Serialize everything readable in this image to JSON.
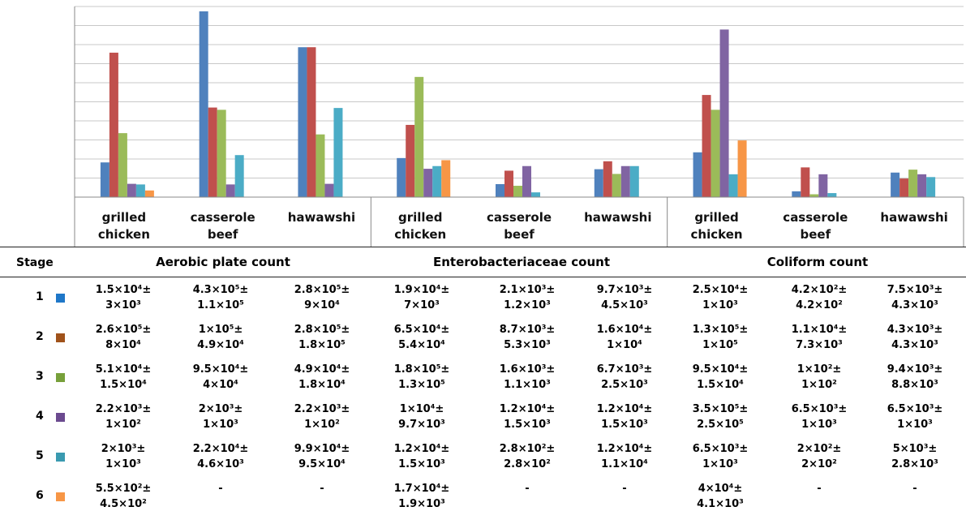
{
  "chart_data": {
    "type": "bar",
    "groups": [
      {
        "name": "Aerobic plate count",
        "categories": [
          "grilled\nchicken",
          "casserole\nbeef",
          "hawawshi"
        ]
      },
      {
        "name": "Enterobacteriaceae count",
        "categories": [
          "grilled\nchicken",
          "casserole\nbeef",
          "hawawshi"
        ]
      },
      {
        "name": "Coliform count",
        "categories": [
          "grilled\nchicken",
          "casserole\nbeef",
          "hawawshi"
        ]
      }
    ],
    "series": [
      {
        "color": "#4f81bd",
        "values": [
          15000.0,
          430000.0,
          280000.0,
          19000.0,
          2100.0,
          9700.0,
          25000.0,
          420.0,
          7500.0
        ]
      },
      {
        "color": "#c0504d",
        "values": [
          260000.0,
          100000.0,
          280000.0,
          65000.0,
          8700.0,
          16000.0,
          130000.0,
          11000.0,
          4300.0
        ]
      },
      {
        "color": "#9bbb59",
        "values": [
          51000.0,
          95000.0,
          49000.0,
          180000.0,
          1600.0,
          6700.0,
          95000.0,
          100.0,
          9400.0
        ]
      },
      {
        "color": "#8064a2",
        "values": [
          2200.0,
          2000.0,
          2200.0,
          10000.0,
          12000.0,
          12000.0,
          350000.0,
          6500.0,
          6500.0
        ]
      },
      {
        "color": "#4bacc6",
        "values": [
          2000.0,
          22000.0,
          99000.0,
          12000.0,
          280.0,
          12000.0,
          6500.0,
          200.0,
          5000.0
        ]
      },
      {
        "color": "#f79646",
        "values": [
          550.0,
          null,
          null,
          17000.0,
          null,
          null,
          40000.0,
          null,
          null
        ]
      }
    ],
    "grid": true,
    "y_tick_labels_visible": false
  },
  "table": {
    "stage_header": "Stage",
    "group_headers": [
      "Aerobic plate count",
      "Enterobacteriaceae count",
      "Coliform count"
    ],
    "rows": [
      {
        "stage": "1",
        "color": "#1f77c8",
        "cells": [
          [
            "1.5×10⁴±",
            "3×10³"
          ],
          [
            "4.3×10⁵±",
            "1.1×10⁵"
          ],
          [
            "2.8×10⁵±",
            "9×10⁴"
          ],
          [
            "1.9×10⁴±",
            "7×10³"
          ],
          [
            "2.1×10³±",
            "1.2×10³"
          ],
          [
            "9.7×10³±",
            "4.5×10³"
          ],
          [
            "2.5×10⁴±",
            "1×10³"
          ],
          [
            "4.2×10²±",
            "4.2×10²"
          ],
          [
            "7.5×10³±",
            "4.3×10³"
          ]
        ]
      },
      {
        "stage": "2",
        "color": "#a0521a",
        "cells": [
          [
            "2.6×10⁵±",
            "8×10⁴"
          ],
          [
            "1×10⁵±",
            "4.9×10⁴"
          ],
          [
            "2.8×10⁵±",
            "1.8×10⁵"
          ],
          [
            "6.5×10⁴±",
            "5.4×10⁴"
          ],
          [
            "8.7×10³±",
            "5.3×10³"
          ],
          [
            "1.6×10⁴±",
            "1×10⁴"
          ],
          [
            "1.3×10⁵±",
            "1×10⁵"
          ],
          [
            "1.1×10⁴±",
            "7.3×10³"
          ],
          [
            "4.3×10³±",
            "4.3×10³"
          ]
        ]
      },
      {
        "stage": "3",
        "color": "#77a03a",
        "cells": [
          [
            "5.1×10⁴±",
            "1.5×10⁴"
          ],
          [
            "9.5×10⁴±",
            "4×10⁴"
          ],
          [
            "4.9×10⁴±",
            "1.8×10⁴"
          ],
          [
            "1.8×10⁵±",
            "1.3×10⁵"
          ],
          [
            "1.6×10³±",
            "1.1×10³"
          ],
          [
            "6.7×10³±",
            "2.5×10³"
          ],
          [
            "9.5×10⁴±",
            "1.5×10⁴"
          ],
          [
            "1×10²±",
            "1×10²"
          ],
          [
            "9.4×10³±",
            "8.8×10³"
          ]
        ]
      },
      {
        "stage": "4",
        "color": "#6b4a8f",
        "cells": [
          [
            "2.2×10³±",
            "1×10²"
          ],
          [
            "2×10³±",
            "1×10³"
          ],
          [
            "2.2×10³±",
            "1×10²"
          ],
          [
            "1×10⁴±",
            "9.7×10³"
          ],
          [
            "1.2×10⁴±",
            "1.5×10³"
          ],
          [
            "1.2×10⁴±",
            "1.5×10³"
          ],
          [
            "3.5×10⁵±",
            "2.5×10⁵"
          ],
          [
            "6.5×10³±",
            "1×10³"
          ],
          [
            "6.5×10³±",
            "1×10³"
          ]
        ]
      },
      {
        "stage": "5",
        "color": "#3a9ab0",
        "cells": [
          [
            "2×10³±",
            "1×10³"
          ],
          [
            "2.2×10⁴±",
            "4.6×10³"
          ],
          [
            "9.9×10⁴±",
            "9.5×10⁴"
          ],
          [
            "1.2×10⁴±",
            "1.5×10³"
          ],
          [
            "2.8×10²±",
            "2.8×10²"
          ],
          [
            "1.2×10⁴±",
            "1.1×10⁴"
          ],
          [
            "6.5×10³±",
            "1×10³"
          ],
          [
            "2×10²±",
            "2×10²"
          ],
          [
            "5×10³±",
            "2.8×10³"
          ]
        ]
      },
      {
        "stage": "6",
        "color": "#f79646",
        "cells": [
          [
            "5.5×10²±",
            "4.5×10²"
          ],
          [
            "-",
            ""
          ],
          [
            "-",
            ""
          ],
          [
            "1.7×10⁴±",
            "1.9×10³"
          ],
          [
            "-",
            ""
          ],
          [
            "-",
            ""
          ],
          [
            "4×10⁴±",
            "4.1×10³"
          ],
          [
            "-",
            ""
          ],
          [
            "-",
            ""
          ]
        ]
      }
    ]
  }
}
